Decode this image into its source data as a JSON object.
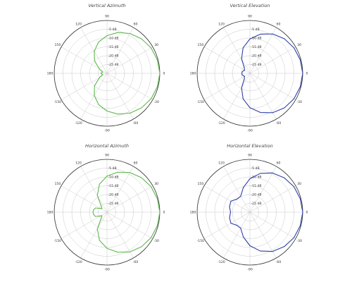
{
  "chart_data": [
    {
      "type": "polar",
      "title": "Vertical Azimuth",
      "color": "#5db84b",
      "angle_ticks": [
        "0",
        "30",
        "60",
        "90",
        "120",
        "150",
        "180",
        "-150",
        "-120",
        "-90",
        "-60",
        "-30"
      ],
      "radial_ticks": [
        "-5  dB",
        "-10  dB",
        "-15  dB",
        "-20  dB",
        "-25  dB"
      ],
      "rlim_db": [
        -30,
        0
      ],
      "series": [
        {
          "theta_deg": [
            0,
            15,
            30,
            45,
            60,
            75,
            90,
            105,
            120,
            135,
            150,
            165,
            172,
            180,
            188,
            195,
            210,
            225,
            240,
            255,
            270,
            285,
            300,
            315,
            330,
            345
          ],
          "db": [
            0,
            -0.4,
            -1.1,
            -2.3,
            -3.9,
            -6,
            -8.6,
            -11.6,
            -15.5,
            -20,
            -25,
            -27.5,
            -27,
            -26.5,
            -27,
            -27.5,
            -25,
            -20,
            -15.5,
            -11.6,
            -8.6,
            -6,
            -3.9,
            -2.3,
            -1.1,
            -0.4
          ]
        }
      ]
    },
    {
      "type": "polar",
      "title": "Vertical Elevation",
      "color": "#2f3ea8",
      "angle_ticks": [
        "0",
        "30",
        "60",
        "90",
        "120",
        "150",
        "180",
        "-150",
        "-120",
        "-90",
        "-60",
        "-30"
      ],
      "radial_ticks": [
        "-5  dB",
        "-10  dB",
        "-15  dB",
        "-20  dB",
        "-25  dB"
      ],
      "rlim_db": [
        -30,
        0
      ],
      "series": [
        {
          "theta_deg": [
            0,
            15,
            30,
            45,
            60,
            75,
            90,
            105,
            120,
            135,
            150,
            160,
            170,
            180,
            190,
            200,
            210,
            225,
            240,
            255,
            270,
            285,
            300,
            315,
            330,
            345
          ],
          "db": [
            0,
            -0.4,
            -1.1,
            -2.3,
            -4.2,
            -7,
            -10.5,
            -15,
            -20.5,
            -25.5,
            -26.5,
            -26,
            -25.5,
            -25.5,
            -25.5,
            -26,
            -26.5,
            -25.5,
            -20.5,
            -15,
            -10.5,
            -7,
            -4.2,
            -2.3,
            -1.1,
            -0.4
          ]
        }
      ]
    },
    {
      "type": "polar",
      "title": "Horizontal Azimuth",
      "color": "#5db84b",
      "angle_ticks": [
        "0",
        "30",
        "60",
        "90",
        "120",
        "150",
        "180",
        "-150",
        "-120",
        "-90",
        "-60",
        "-30"
      ],
      "radial_ticks": [
        "-5  dB",
        "-10  dB",
        "-15  dB",
        "-20  dB",
        "-25  dB"
      ],
      "rlim_db": [
        -30,
        0
      ],
      "series": [
        {
          "theta_deg": [
            0,
            15,
            30,
            45,
            60,
            75,
            90,
            105,
            120,
            135,
            145,
            160,
            170,
            180,
            190,
            200,
            215,
            225,
            240,
            255,
            270,
            285,
            300,
            315,
            330,
            345
          ],
          "db": [
            0,
            -0.4,
            -1.1,
            -2.3,
            -4,
            -6.5,
            -9.5,
            -13.5,
            -19,
            -25.5,
            -26.5,
            -23,
            -22.3,
            -22,
            -22.3,
            -23,
            -26.5,
            -25.5,
            -19,
            -13.5,
            -9.5,
            -6.5,
            -4,
            -2.3,
            -1.1,
            -0.4
          ]
        }
      ]
    },
    {
      "type": "polar",
      "title": "Horizontal Elevation",
      "color": "#2f3ea8",
      "angle_ticks": [
        "0",
        "30",
        "60",
        "90",
        "120",
        "150",
        "180",
        "-150",
        "-120",
        "-90",
        "-60",
        "-30"
      ],
      "radial_ticks": [
        "-5  dB",
        "-10  dB",
        "-15  dB",
        "-20  dB",
        "-25  dB"
      ],
      "rlim_db": [
        -30,
        0
      ],
      "series": [
        {
          "theta_deg": [
            0,
            15,
            30,
            45,
            60,
            75,
            90,
            105,
            120,
            135,
            150,
            165,
            180,
            195,
            210,
            225,
            240,
            255,
            270,
            285,
            300,
            315,
            330,
            345
          ],
          "db": [
            0,
            -0.4,
            -1.1,
            -2.4,
            -4.3,
            -7.2,
            -11,
            -15.5,
            -19.5,
            -19.5,
            -17.5,
            -18,
            -19,
            -18,
            -17.5,
            -19.5,
            -19.5,
            -15.5,
            -11,
            -7.2,
            -4.3,
            -2.4,
            -1.1,
            -0.4
          ]
        }
      ]
    }
  ]
}
